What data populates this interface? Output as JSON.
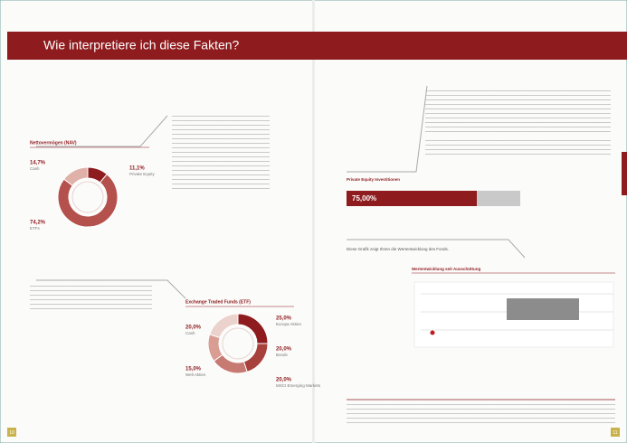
{
  "header": {
    "title": "Wie interpretiere ich diese Fakten?"
  },
  "nav_chart": {
    "type": "donut",
    "title": "Nettovermögen (NAV)",
    "categories": [
      "Private Equity",
      "ETFs",
      "Cash"
    ],
    "values": [
      11.1,
      74.2,
      14.7
    ],
    "value_labels": [
      "11,1%",
      "74,2%",
      "14,7%"
    ],
    "colors": [
      "#8e1b1e",
      "#b4514c",
      "#dfb1a9"
    ]
  },
  "etf_chart": {
    "type": "donut",
    "title": "Exchange Traded Funds (ETF)",
    "categories": [
      "Europa Aktien",
      "Bonds",
      "MSCI Emerging Markets",
      "Welt Aktien",
      "Cash"
    ],
    "values": [
      25,
      20,
      20,
      15,
      20
    ],
    "value_labels": [
      "25,0%",
      "20,0%",
      "20,0%",
      "15,0%",
      "20,0%"
    ],
    "colors": [
      "#8e1b1e",
      "#a8403c",
      "#c77a72",
      "#d99d94",
      "#ecd2cc"
    ]
  },
  "pe_bar": {
    "type": "bar",
    "title": "Private Equity Investitionen",
    "value": 75,
    "value_label": "75,00%",
    "xlim": [
      0,
      100
    ]
  },
  "performance": {
    "intro": "Diese Grafik zeigt Ihnen die Wertentwicklung des Fonds.",
    "title": "Wertentwicklung seit Ausschüttung"
  },
  "footer": {
    "left_page": "10",
    "right_page": "11"
  }
}
